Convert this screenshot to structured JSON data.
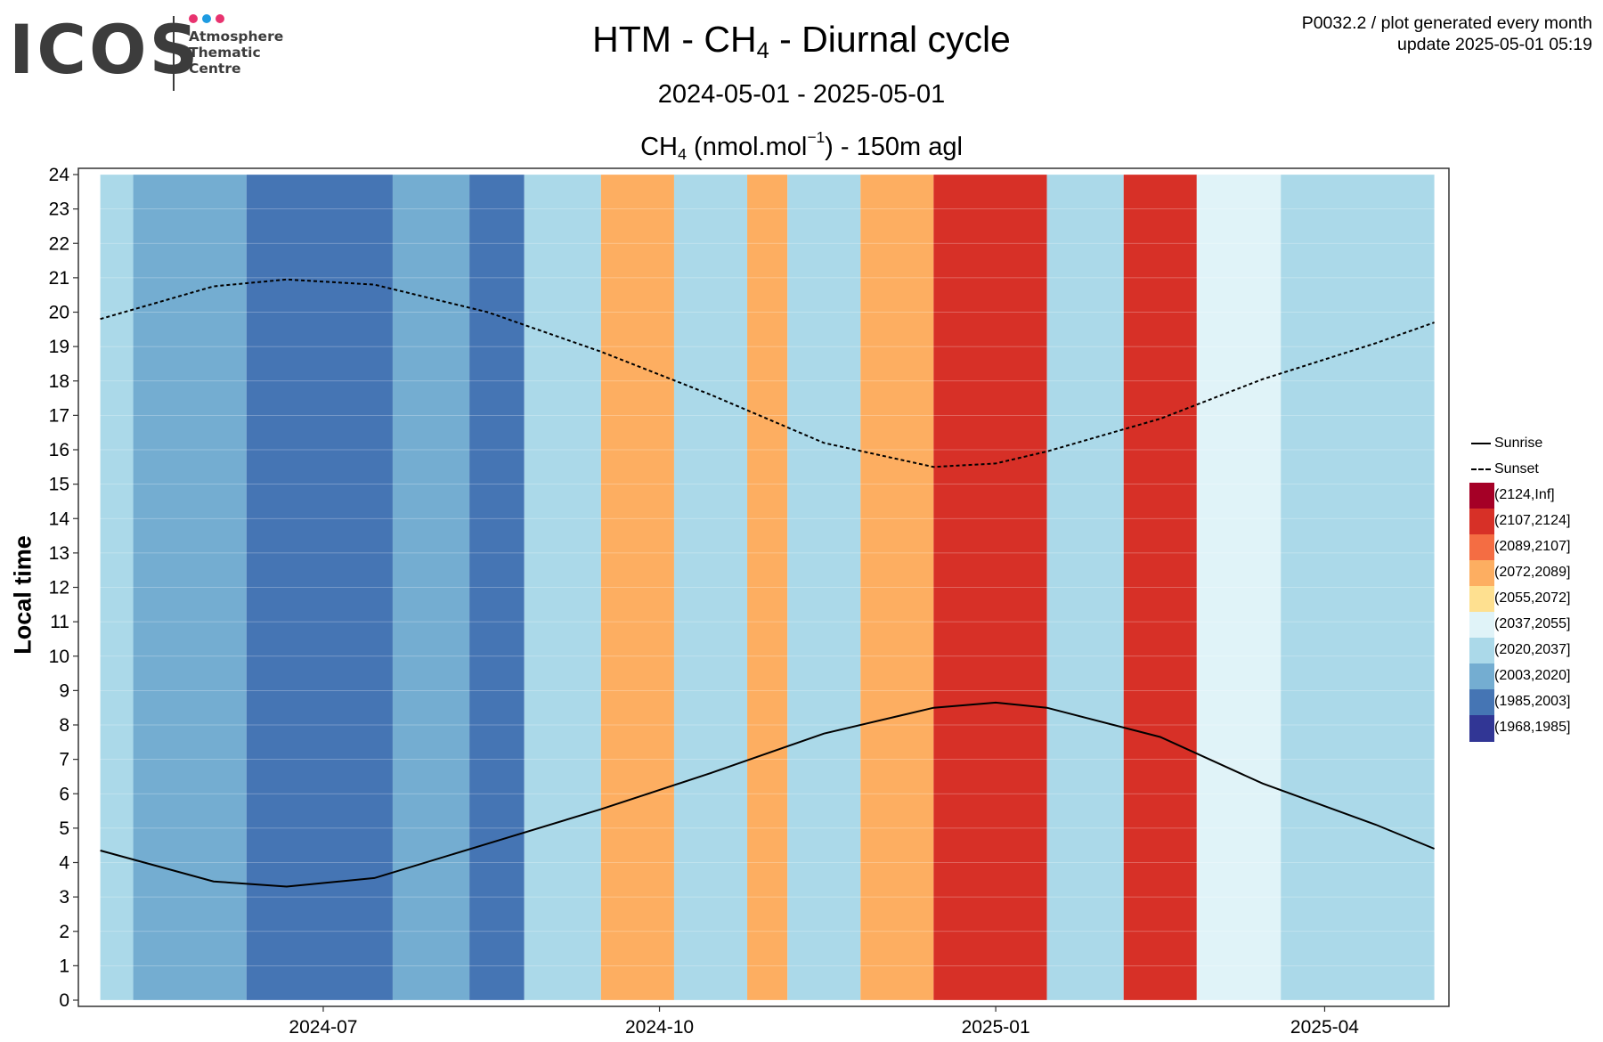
{
  "header": {
    "logo_text": "ICOS",
    "logo_sub": [
      "Atmosphere",
      "Thematic",
      "Centre"
    ],
    "logo_dot_colors": [
      "#e8336f",
      "#1e9be1",
      "#e8336f"
    ],
    "title_prefix": "HTM - CH",
    "title_sub": "4",
    "title_suffix": " - Diurnal cycle",
    "date_range": "2024-05-01 - 2025-05-01",
    "subtitle_prefix": "CH",
    "subtitle_sub": "4",
    "subtitle_mid": " (nmol.mol",
    "subtitle_sup": "−1",
    "subtitle_suffix": ") - 150m agl",
    "corner_line1": "P0032.2 / plot generated every month",
    "corner_line2": "update  2025-05-01 05:19"
  },
  "chart_data": {
    "type": "heatmap",
    "x_range": [
      "2024-05-01",
      "2025-05-01"
    ],
    "xlim": [
      "2024-04-25",
      "2025-05-05"
    ],
    "x_ticks": [
      "2024-07",
      "2024-10",
      "2025-01",
      "2025-04"
    ],
    "ylabel": "Local time",
    "ylim": [
      0,
      24
    ],
    "y_ticks": [
      0,
      1,
      2,
      3,
      4,
      5,
      6,
      7,
      8,
      9,
      10,
      11,
      12,
      13,
      14,
      15,
      16,
      17,
      18,
      19,
      20,
      21,
      22,
      23,
      24
    ],
    "grid": true,
    "legend_position": "right",
    "classes": [
      {
        "label": "(2124,Inf]",
        "color": "#a50026"
      },
      {
        "label": "(2107,2124]",
        "color": "#d73027"
      },
      {
        "label": "(2089,2107]",
        "color": "#f46d43"
      },
      {
        "label": "(2072,2089]",
        "color": "#fdae61"
      },
      {
        "label": "(2055,2072]",
        "color": "#fee090"
      },
      {
        "label": "(2037,2055]",
        "color": "#e0f3f8"
      },
      {
        "label": "(2020,2037]",
        "color": "#abd9e9"
      },
      {
        "label": "(2003,2020]",
        "color": "#74add1"
      },
      {
        "label": "(1985,2003]",
        "color": "#4575b4"
      },
      {
        "label": "(1968,1985]",
        "color": "#313695"
      }
    ],
    "periods": [
      {
        "from": "2024-05-01",
        "to": "2024-05-10",
        "class_index": 6
      },
      {
        "from": "2024-05-10",
        "to": "2024-06-10",
        "class_index": 7
      },
      {
        "from": "2024-06-10",
        "to": "2024-07-20",
        "class_index": 8
      },
      {
        "from": "2024-07-20",
        "to": "2024-08-10",
        "class_index": 7
      },
      {
        "from": "2024-08-10",
        "to": "2024-08-25",
        "class_index": 8
      },
      {
        "from": "2024-08-25",
        "to": "2024-09-15",
        "class_index": 6
      },
      {
        "from": "2024-09-15",
        "to": "2024-10-05",
        "class_index": 3
      },
      {
        "from": "2024-10-05",
        "to": "2024-10-25",
        "class_index": 6
      },
      {
        "from": "2024-10-25",
        "to": "2024-11-05",
        "class_index": 3
      },
      {
        "from": "2024-11-05",
        "to": "2024-11-25",
        "class_index": 6
      },
      {
        "from": "2024-11-25",
        "to": "2024-12-15",
        "class_index": 3
      },
      {
        "from": "2024-12-15",
        "to": "2025-01-15",
        "class_index": 1
      },
      {
        "from": "2025-01-15",
        "to": "2025-02-05",
        "class_index": 6
      },
      {
        "from": "2025-02-05",
        "to": "2025-02-25",
        "class_index": 1
      },
      {
        "from": "2025-02-25",
        "to": "2025-03-20",
        "class_index": 5
      },
      {
        "from": "2025-03-20",
        "to": "2025-05-01",
        "class_index": 6
      }
    ],
    "series": [
      {
        "name": "Sunrise",
        "line_style": "solid",
        "x": [
          "2024-05-01",
          "2024-06-01",
          "2024-06-21",
          "2024-07-15",
          "2024-08-15",
          "2024-09-15",
          "2024-10-15",
          "2024-11-15",
          "2024-12-15",
          "2025-01-01",
          "2025-01-15",
          "2025-02-15",
          "2025-03-15",
          "2025-04-15",
          "2025-05-01"
        ],
        "y": [
          4.35,
          3.45,
          3.3,
          3.55,
          4.55,
          5.55,
          6.6,
          7.75,
          8.5,
          8.65,
          8.5,
          7.65,
          6.3,
          5.1,
          4.4
        ]
      },
      {
        "name": "Sunset",
        "line_style": "dashed",
        "x": [
          "2024-05-01",
          "2024-06-01",
          "2024-06-21",
          "2024-07-15",
          "2024-08-15",
          "2024-09-15",
          "2024-10-15",
          "2024-11-15",
          "2024-12-15",
          "2025-01-01",
          "2025-01-15",
          "2025-02-15",
          "2025-03-15",
          "2025-04-15",
          "2025-05-01"
        ],
        "y": [
          19.8,
          20.75,
          20.95,
          20.8,
          20.0,
          18.85,
          17.6,
          16.2,
          15.5,
          15.6,
          15.95,
          16.9,
          18.05,
          19.1,
          19.7
        ]
      }
    ]
  }
}
